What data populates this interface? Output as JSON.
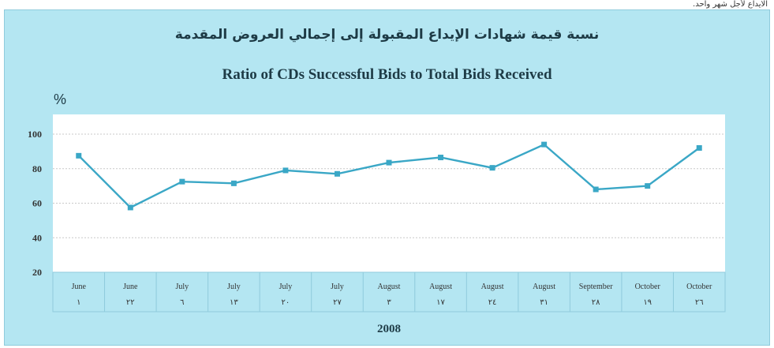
{
  "note": "الايداع لأجل شهر واحد.",
  "chart_data": {
    "type": "line",
    "title": "نسبة قيمة شهادات الإيداع المقبولة إلى إجمالي العروض المقدمة",
    "subtitle": "Ratio of CDs Successful Bids to Total Bids Received",
    "ylabel": "%",
    "xlabel": "2008",
    "ylim": [
      20,
      100
    ],
    "yticks": [
      20,
      40,
      60,
      80,
      100
    ],
    "grid": true,
    "categories": [
      {
        "month": "June",
        "day": "١"
      },
      {
        "month": "June",
        "day": "٢٢"
      },
      {
        "month": "July",
        "day": "٦"
      },
      {
        "month": "July",
        "day": "١٣"
      },
      {
        "month": "July",
        "day": "٢٠"
      },
      {
        "month": "July",
        "day": "٢٧"
      },
      {
        "month": "August",
        "day": "٣"
      },
      {
        "month": "August",
        "day": "١٧"
      },
      {
        "month": "August",
        "day": "٢٤"
      },
      {
        "month": "August",
        "day": "٣١"
      },
      {
        "month": "September",
        "day": "٢٨"
      },
      {
        "month": "October",
        "day": "١٩"
      },
      {
        "month": "October",
        "day": "٢٦"
      }
    ],
    "values": [
      87.5,
      57.5,
      72.5,
      71.5,
      79,
      77,
      83.5,
      86.5,
      80.5,
      94,
      68,
      70,
      92
    ],
    "line_color": "#3aa7c6"
  }
}
